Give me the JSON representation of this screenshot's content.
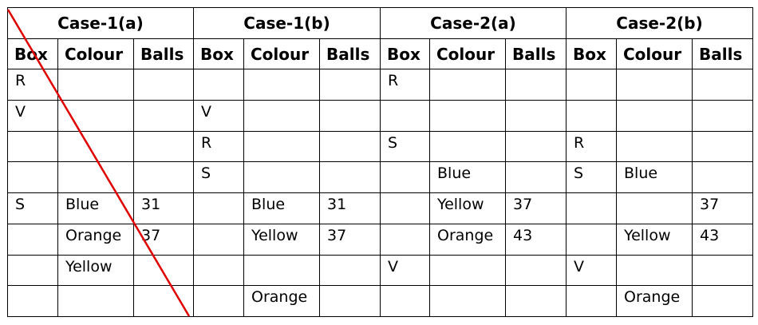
{
  "cases": [
    "Case-1(a)",
    "Case-1(b)",
    "Case-2(a)",
    "Case-2(b)"
  ],
  "columns": [
    "Box",
    "Colour",
    "Balls"
  ],
  "rows": [
    [
      "R",
      "",
      "",
      "",
      "",
      "",
      "R",
      "",
      "",
      "",
      "",
      ""
    ],
    [
      "V",
      "",
      "",
      "V",
      "",
      "",
      "",
      "",
      "",
      "",
      "",
      ""
    ],
    [
      "",
      "",
      "",
      "R",
      "",
      "",
      "S",
      "",
      "",
      "R",
      "",
      ""
    ],
    [
      "",
      "",
      "",
      "S",
      "",
      "",
      "",
      "Blue",
      "",
      "S",
      "Blue",
      ""
    ],
    [
      "S",
      "Blue",
      "31",
      "",
      "Blue",
      "31",
      "",
      "Yellow",
      "37",
      "",
      "",
      "37"
    ],
    [
      "",
      "Orange",
      "37",
      "",
      "Yellow",
      "37",
      "",
      "Orange",
      "43",
      "",
      "Yellow",
      "43"
    ],
    [
      "",
      "Yellow",
      "",
      "",
      "",
      "",
      "V",
      "",
      "",
      "V",
      "",
      ""
    ],
    [
      "",
      "",
      "",
      "",
      "Orange",
      "",
      "",
      "",
      "",
      "",
      "Orange",
      ""
    ]
  ],
  "strike_color": "#e00000"
}
